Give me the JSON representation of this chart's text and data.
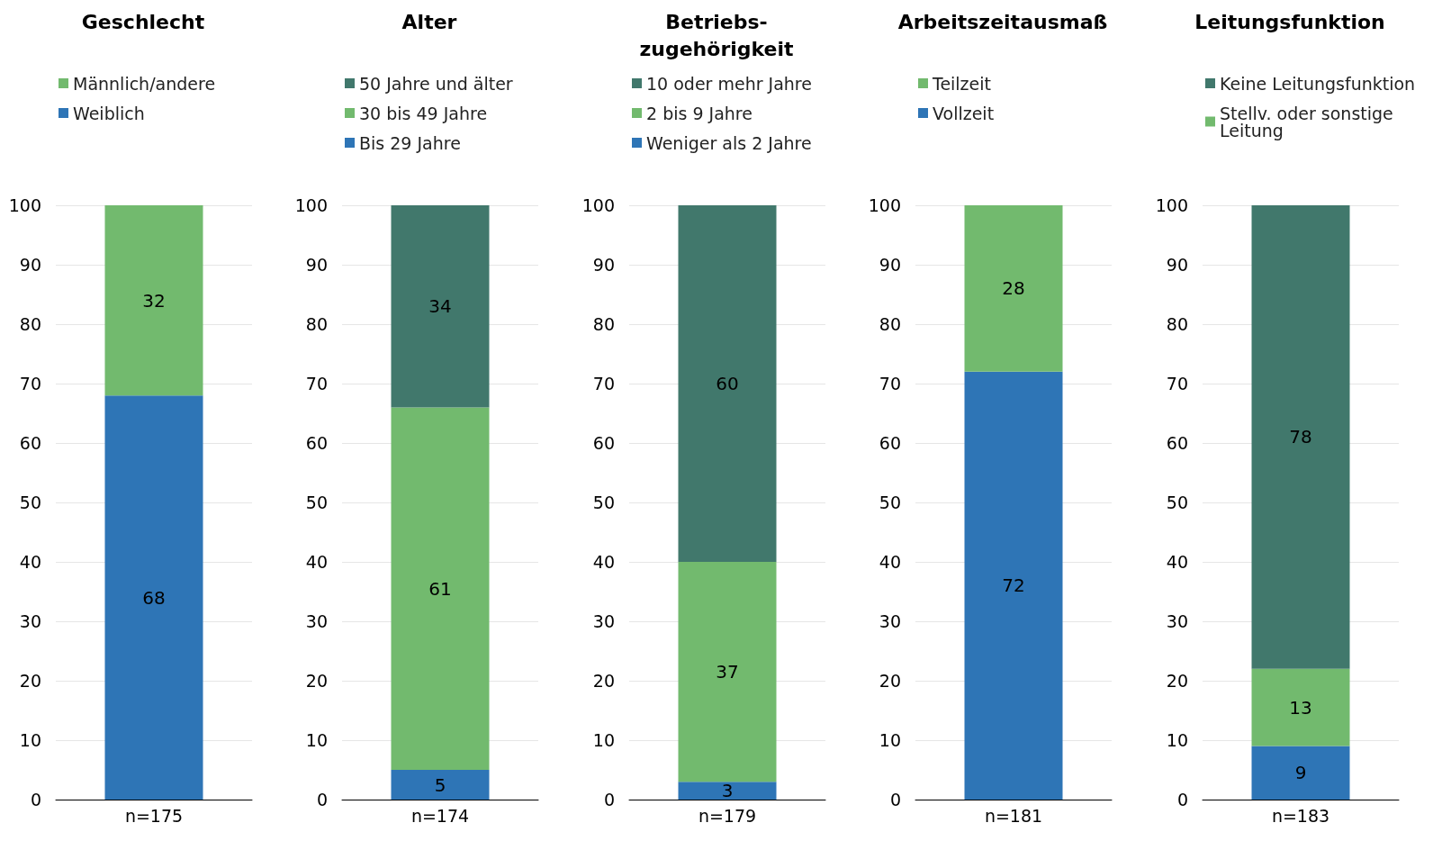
{
  "chart_data": [
    {
      "type": "bar",
      "title": "Geschlecht",
      "categories": [
        "n=175"
      ],
      "stacked": true,
      "data_labels": true,
      "legend": "top",
      "grid": "y",
      "ylim": [
        0,
        100
      ],
      "yticks": [
        0,
        10,
        20,
        30,
        40,
        50,
        60,
        70,
        80,
        90,
        100
      ],
      "series": [
        {
          "name": "Weiblich",
          "color": "#2e75b6",
          "values": [
            68
          ]
        },
        {
          "name": "Männlich/andere",
          "color": "#72ba6e",
          "values": [
            32
          ]
        }
      ]
    },
    {
      "type": "bar",
      "title": "Alter",
      "categories": [
        "n=174"
      ],
      "stacked": true,
      "data_labels": true,
      "legend": "top",
      "grid": "y",
      "ylim": [
        0,
        100
      ],
      "yticks": [
        0,
        10,
        20,
        30,
        40,
        50,
        60,
        70,
        80,
        90,
        100
      ],
      "series": [
        {
          "name": "Bis 29 Jahre",
          "color": "#2e75b6",
          "values": [
            5
          ]
        },
        {
          "name": "30 bis 49 Jahre",
          "color": "#72ba6e",
          "values": [
            61
          ]
        },
        {
          "name": "50 Jahre und älter",
          "color": "#41786c",
          "values": [
            34
          ]
        }
      ]
    },
    {
      "type": "bar",
      "title": "Betriebs-\nzugehörigkeit",
      "categories": [
        "n=179"
      ],
      "stacked": true,
      "data_labels": true,
      "legend": "top",
      "grid": "y",
      "ylim": [
        0,
        100
      ],
      "yticks": [
        0,
        10,
        20,
        30,
        40,
        50,
        60,
        70,
        80,
        90,
        100
      ],
      "series": [
        {
          "name": "Weniger als 2 Jahre",
          "color": "#2e75b6",
          "values": [
            3
          ]
        },
        {
          "name": "2 bis 9 Jahre",
          "color": "#72ba6e",
          "values": [
            37
          ]
        },
        {
          "name": "10 oder mehr Jahre",
          "color": "#41786c",
          "values": [
            60
          ]
        }
      ]
    },
    {
      "type": "bar",
      "title": "Arbeitszeitausmaß",
      "categories": [
        "n=181"
      ],
      "stacked": true,
      "data_labels": true,
      "legend": "top",
      "grid": "y",
      "ylim": [
        0,
        100
      ],
      "yticks": [
        0,
        10,
        20,
        30,
        40,
        50,
        60,
        70,
        80,
        90,
        100
      ],
      "series": [
        {
          "name": "Vollzeit",
          "color": "#2e75b6",
          "values": [
            72
          ]
        },
        {
          "name": "Teilzeit",
          "color": "#72ba6e",
          "values": [
            28
          ]
        }
      ]
    },
    {
      "type": "bar",
      "title": "Leitungsfunktion",
      "categories": [
        "n=183"
      ],
      "stacked": true,
      "data_labels": true,
      "legend": "top",
      "grid": "y",
      "ylim": [
        0,
        100
      ],
      "yticks": [
        0,
        10,
        20,
        30,
        40,
        50,
        60,
        70,
        80,
        90,
        100
      ],
      "series": [
        {
          "color": "#2e75b6",
          "values": [
            9
          ]
        },
        {
          "name": "Stellv. oder sonstige Leitung",
          "color": "#72ba6e",
          "values": [
            13
          ]
        },
        {
          "name": "Keine Leitungsfunktion",
          "color": "#41786c",
          "values": [
            78
          ]
        }
      ]
    }
  ]
}
